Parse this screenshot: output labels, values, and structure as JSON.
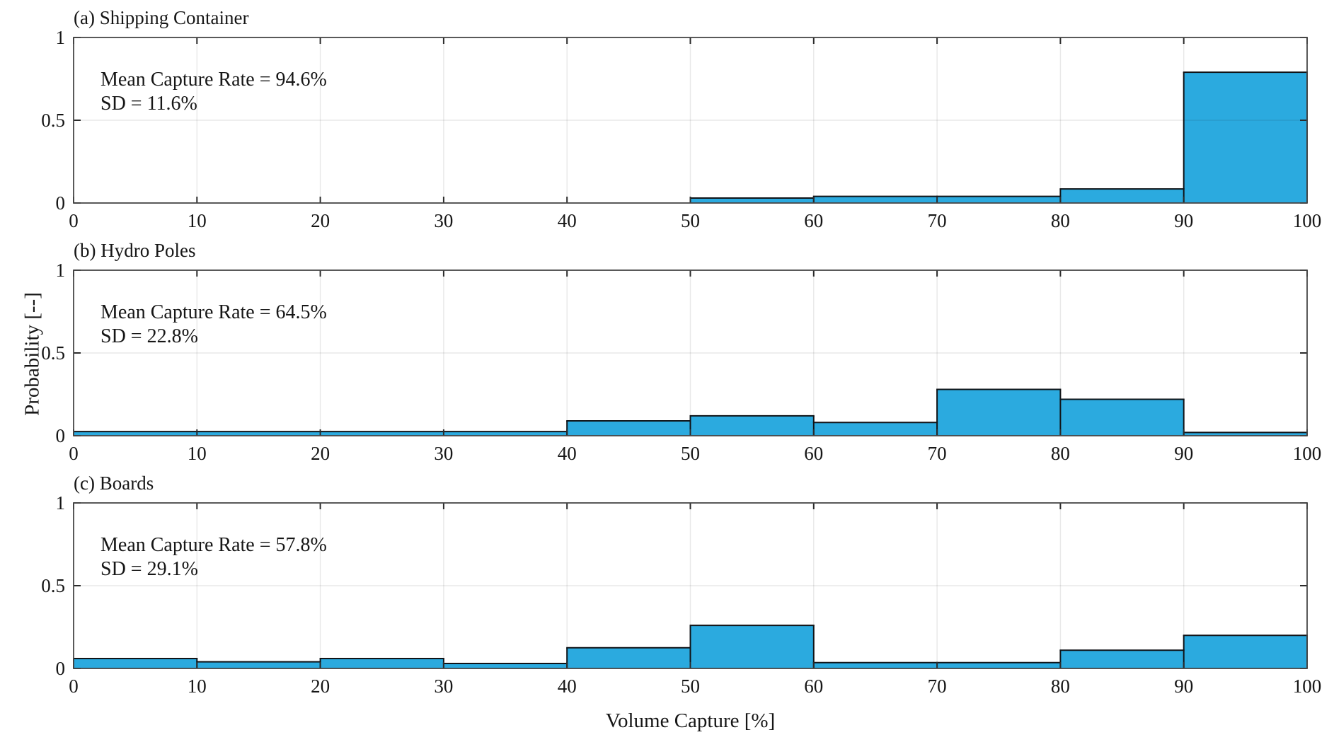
{
  "figure": {
    "xlabel": "Volume Capture [%]",
    "ylabel": "Probability [--]",
    "x_ticks": [
      0,
      10,
      20,
      30,
      40,
      50,
      60,
      70,
      80,
      90,
      100
    ],
    "y_ticks": [
      0,
      0.5,
      1
    ],
    "y_tick_labels": [
      "0",
      "0.5",
      "1"
    ],
    "colors": {
      "bar_fill": "#2baadf",
      "bar_edge": "#101418",
      "axis": "#474747",
      "tick": "#2b2b2b",
      "grid": "rgba(25,25,25,0.10)",
      "text": "#161616",
      "background": "#ffffff"
    }
  },
  "chart_data": [
    {
      "type": "bar",
      "panel": "a",
      "title": "(a) Shipping Container",
      "annotation_line1": "Mean Capture Rate = 94.6%",
      "annotation_line2": "SD = 11.6%",
      "mean_capture_rate_pct": 94.6,
      "sd_pct": 11.6,
      "bin_edges": [
        0,
        10,
        20,
        30,
        40,
        50,
        60,
        70,
        80,
        90,
        100
      ],
      "values": [
        0,
        0,
        0,
        0,
        0,
        0.03,
        0.04,
        0.04,
        0.085,
        0.79
      ],
      "xlabel": "Volume Capture [%]",
      "ylabel": "Probability [--]",
      "xlim": [
        0,
        100
      ],
      "ylim": [
        0,
        1
      ],
      "grid": true,
      "legend": "none"
    },
    {
      "type": "bar",
      "panel": "b",
      "title": "(b) Hydro Poles",
      "annotation_line1": "Mean Capture Rate = 64.5%",
      "annotation_line2": "SD = 22.8%",
      "mean_capture_rate_pct": 64.5,
      "sd_pct": 22.8,
      "bin_edges": [
        0,
        10,
        20,
        30,
        40,
        50,
        60,
        70,
        80,
        90,
        100
      ],
      "values": [
        0.025,
        0.025,
        0.025,
        0.025,
        0.09,
        0.12,
        0.08,
        0.28,
        0.22,
        0.02
      ],
      "xlabel": "Volume Capture [%]",
      "ylabel": "Probability [--]",
      "xlim": [
        0,
        100
      ],
      "ylim": [
        0,
        1
      ],
      "grid": true,
      "legend": "none"
    },
    {
      "type": "bar",
      "panel": "c",
      "title": "(c) Boards",
      "annotation_line1": "Mean Capture Rate = 57.8%",
      "annotation_line2": "SD = 29.1%",
      "mean_capture_rate_pct": 57.8,
      "sd_pct": 29.1,
      "bin_edges": [
        0,
        10,
        20,
        30,
        40,
        50,
        60,
        70,
        80,
        90,
        100
      ],
      "values": [
        0.06,
        0.04,
        0.06,
        0.03,
        0.125,
        0.26,
        0.035,
        0.035,
        0.11,
        0.2
      ],
      "xlabel": "Volume Capture [%]",
      "ylabel": "Probability [--]",
      "xlim": [
        0,
        100
      ],
      "ylim": [
        0,
        1
      ],
      "grid": true,
      "legend": "none"
    }
  ]
}
